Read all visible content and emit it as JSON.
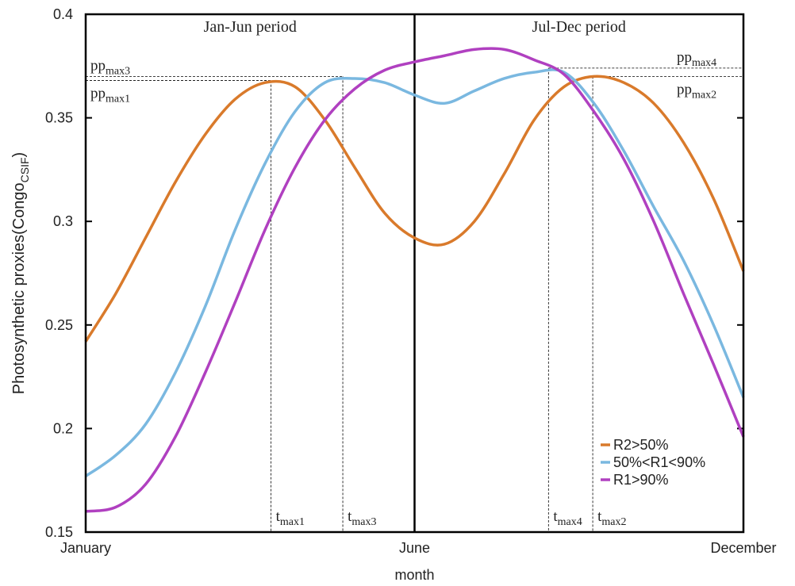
{
  "chart_data": {
    "type": "line",
    "xlabel": "month",
    "ylabel": "Photosynthetic proxies(Congo",
    "ylabel_sub": "CSIF",
    "ylabel_end": ")",
    "period_labels": [
      "Jan-Jun period",
      "Jul-Dec period"
    ],
    "divider_x": 6.5,
    "xlim": [
      1,
      12
    ],
    "xticks": [
      {
        "value": 1,
        "label": "January"
      },
      {
        "value": 6.5,
        "label": "June"
      },
      {
        "value": 12,
        "label": "December"
      }
    ],
    "ylim": [
      0.15,
      0.4
    ],
    "yticks": [
      0.15,
      0.2,
      0.25,
      0.3,
      0.35,
      0.4
    ],
    "x": [
      1,
      1.5,
      2,
      2.5,
      3,
      3.5,
      4,
      4.5,
      5,
      5.5,
      6,
      6.5,
      7,
      7.5,
      8,
      8.5,
      9,
      9.5,
      10,
      10.5,
      11,
      11.5,
      12
    ],
    "series": [
      {
        "name": "R2>50%",
        "color": "#d97a2b",
        "values": [
          0.242,
          0.265,
          0.292,
          0.319,
          0.342,
          0.359,
          0.367,
          0.365,
          0.349,
          0.326,
          0.304,
          0.292,
          0.289,
          0.3,
          0.323,
          0.349,
          0.365,
          0.37,
          0.367,
          0.357,
          0.338,
          0.311,
          0.276
        ]
      },
      {
        "name": "50%<R1<90%",
        "color": "#7ab8e0",
        "values": [
          0.177,
          0.187,
          0.202,
          0.227,
          0.259,
          0.296,
          0.328,
          0.353,
          0.367,
          0.369,
          0.367,
          0.361,
          0.357,
          0.363,
          0.369,
          0.372,
          0.372,
          0.357,
          0.334,
          0.307,
          0.281,
          0.25,
          0.215
        ]
      },
      {
        "name": "R1>90%",
        "color": "#b040c0",
        "values": [
          0.16,
          0.162,
          0.173,
          0.196,
          0.227,
          0.261,
          0.296,
          0.326,
          0.349,
          0.364,
          0.373,
          0.377,
          0.38,
          0.383,
          0.383,
          0.378,
          0.371,
          0.353,
          0.33,
          0.3,
          0.265,
          0.231,
          0.196
        ]
      }
    ],
    "peaks": [
      {
        "pp": "pp",
        "pp_sub": "max1",
        "t": "t",
        "t_sub": "max1",
        "x": 4.1,
        "y": 0.368
      },
      {
        "pp": "pp",
        "pp_sub": "max3",
        "t": "t",
        "t_sub": "max3",
        "x": 5.3,
        "y": 0.37
      },
      {
        "pp": "pp",
        "pp_sub": "max4",
        "t": "t",
        "t_sub": "max4",
        "x": 8.74,
        "y": 0.374
      },
      {
        "pp": "pp",
        "pp_sub": "max2",
        "t": "t",
        "t_sub": "max2",
        "x": 9.48,
        "y": 0.37
      }
    ],
    "legend": "lower right"
  }
}
